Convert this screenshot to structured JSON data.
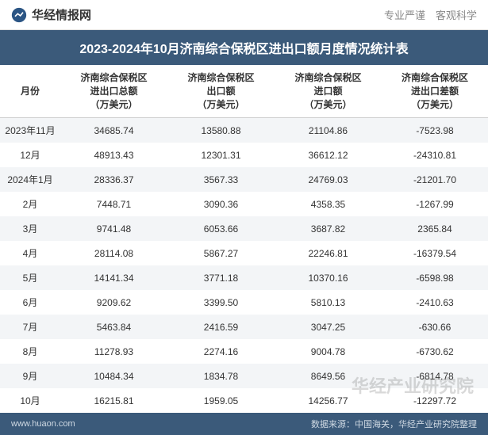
{
  "header": {
    "brand_name": "华经情报网",
    "tagline": "专业严谨 客观科学",
    "logo_color": "#2b5584"
  },
  "title": "2023-2024年10月济南综合保税区进出口额月度情况统计表",
  "colors": {
    "title_bg": "#3b5a7a",
    "title_fg": "#ffffff",
    "row_odd": "#f3f5f7",
    "row_even": "#ffffff",
    "text": "#333333",
    "footer_bg": "#3b5a7a",
    "footer_fg": "#cfd9e3"
  },
  "table": {
    "columns": [
      "月份",
      "济南综合保税区\n进出口总额\n（万美元）",
      "济南综合保税区\n出口额\n（万美元）",
      "济南综合保税区\n进口额\n（万美元）",
      "济南综合保税区\n进出口差额\n（万美元）"
    ],
    "rows": [
      [
        "2023年11月",
        "34685.74",
        "13580.88",
        "21104.86",
        "-7523.98"
      ],
      [
        "12月",
        "48913.43",
        "12301.31",
        "36612.12",
        "-24310.81"
      ],
      [
        "2024年1月",
        "28336.37",
        "3567.33",
        "24769.03",
        "-21201.70"
      ],
      [
        "2月",
        "7448.71",
        "3090.36",
        "4358.35",
        "-1267.99"
      ],
      [
        "3月",
        "9741.48",
        "6053.66",
        "3687.82",
        "2365.84"
      ],
      [
        "4月",
        "28114.08",
        "5867.27",
        "22246.81",
        "-16379.54"
      ],
      [
        "5月",
        "14141.34",
        "3771.18",
        "10370.16",
        "-6598.98"
      ],
      [
        "6月",
        "9209.62",
        "3399.50",
        "5810.13",
        "-2410.63"
      ],
      [
        "7月",
        "5463.84",
        "2416.59",
        "3047.25",
        "-630.66"
      ],
      [
        "8月",
        "11278.93",
        "2274.16",
        "9004.78",
        "-6730.62"
      ],
      [
        "9月",
        "10484.34",
        "1834.78",
        "8649.56",
        "-6814.78"
      ],
      [
        "10月",
        "16215.81",
        "1959.05",
        "14256.77",
        "-12297.72"
      ]
    ]
  },
  "footer": {
    "url": "www.huaon.com",
    "source": "数据来源：中国海关，华经产业研究院整理"
  },
  "watermark": "华经产业研究院"
}
